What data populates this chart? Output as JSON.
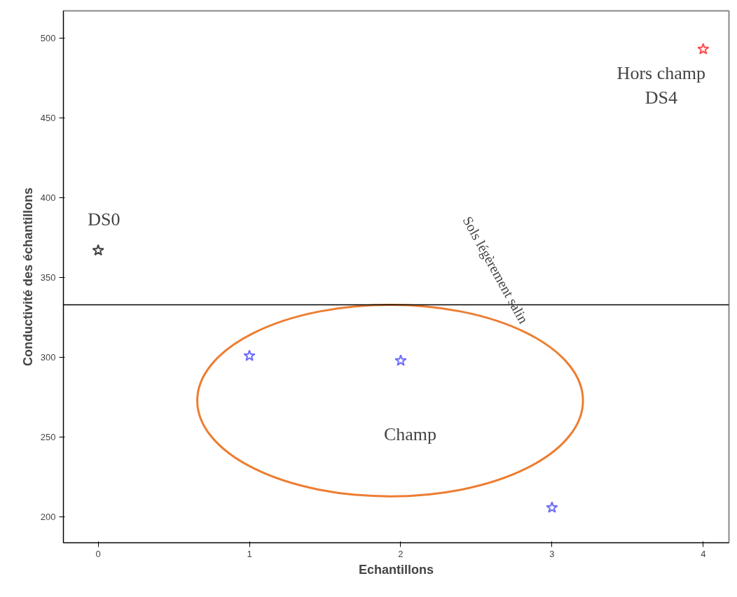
{
  "chart_data": {
    "type": "scatter",
    "xlabel": "Echantillons",
    "ylabel": "Conductivité des échantillons",
    "x": [
      0,
      1,
      2,
      3,
      4
    ],
    "values": [
      367,
      301,
      298,
      206,
      493
    ],
    "colors": [
      "#444444",
      "#6b6bff",
      "#6b6bff",
      "#6b6bff",
      "#ff4b4b"
    ],
    "marker": "star",
    "grid": false,
    "xlim": [
      -0.23,
      4.17
    ],
    "ylim": [
      184,
      517
    ],
    "xticks": [
      0,
      1,
      2,
      3,
      4
    ],
    "yticks": [
      200,
      250,
      300,
      350,
      400,
      450,
      500
    ],
    "ref_lines": [
      {
        "axis": "y",
        "value": 333,
        "color": "#000000"
      }
    ],
    "annotations": [
      {
        "text": "DS0",
        "x": 0,
        "y": 367
      },
      {
        "text": "Hors champ\nDS4",
        "x": 4,
        "y": 493
      },
      "Sols légèrement salin",
      "Champ"
    ]
  }
}
